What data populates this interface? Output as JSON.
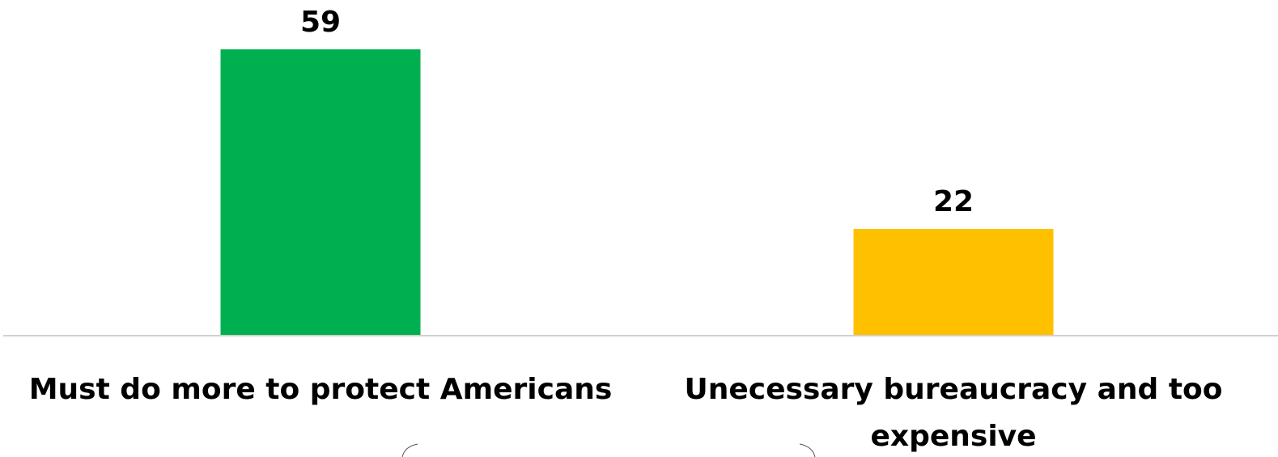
{
  "chart_data": {
    "type": "bar",
    "categories": [
      [
        "Must do more to protect Americans"
      ],
      [
        "Unecessary bureaucracy and too",
        "expensive"
      ]
    ],
    "values": [
      59,
      22
    ],
    "value_labels": [
      "59",
      "22"
    ],
    "colors": [
      "#00B050",
      "#FFC000"
    ],
    "title": "",
    "xlabel": "",
    "ylabel": "",
    "ylim": [
      0,
      59
    ],
    "grid": false,
    "legend": "none"
  }
}
